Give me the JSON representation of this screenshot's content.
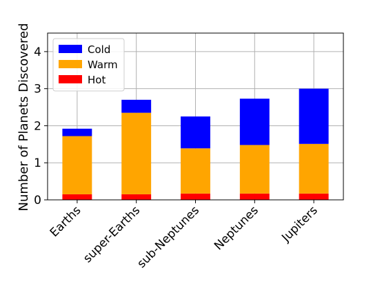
{
  "chart_data": {
    "type": "bar",
    "stacked": true,
    "categories": [
      "Earths",
      "super-Earths",
      "sub-Neptunes",
      "Neptunes",
      "Jupiters"
    ],
    "series": [
      {
        "name": "Hot",
        "color": "#ff0000",
        "values": [
          0.15,
          0.15,
          0.17,
          0.17,
          0.17
        ]
      },
      {
        "name": "Warm",
        "color": "#ffa500",
        "values": [
          1.57,
          2.2,
          1.22,
          1.31,
          1.34
        ]
      },
      {
        "name": "Cold",
        "color": "#0000ff",
        "values": [
          0.2,
          0.35,
          0.86,
          1.25,
          1.49
        ]
      }
    ],
    "title": "",
    "xlabel": "",
    "ylabel": "Number of Planets Discovered",
    "ylim": [
      0,
      4.5
    ],
    "yticks": [
      0,
      1,
      2,
      3,
      4
    ],
    "grid": true,
    "legend": {
      "placement": "top-left",
      "entries": [
        "Cold",
        "Warm",
        "Hot"
      ]
    }
  }
}
